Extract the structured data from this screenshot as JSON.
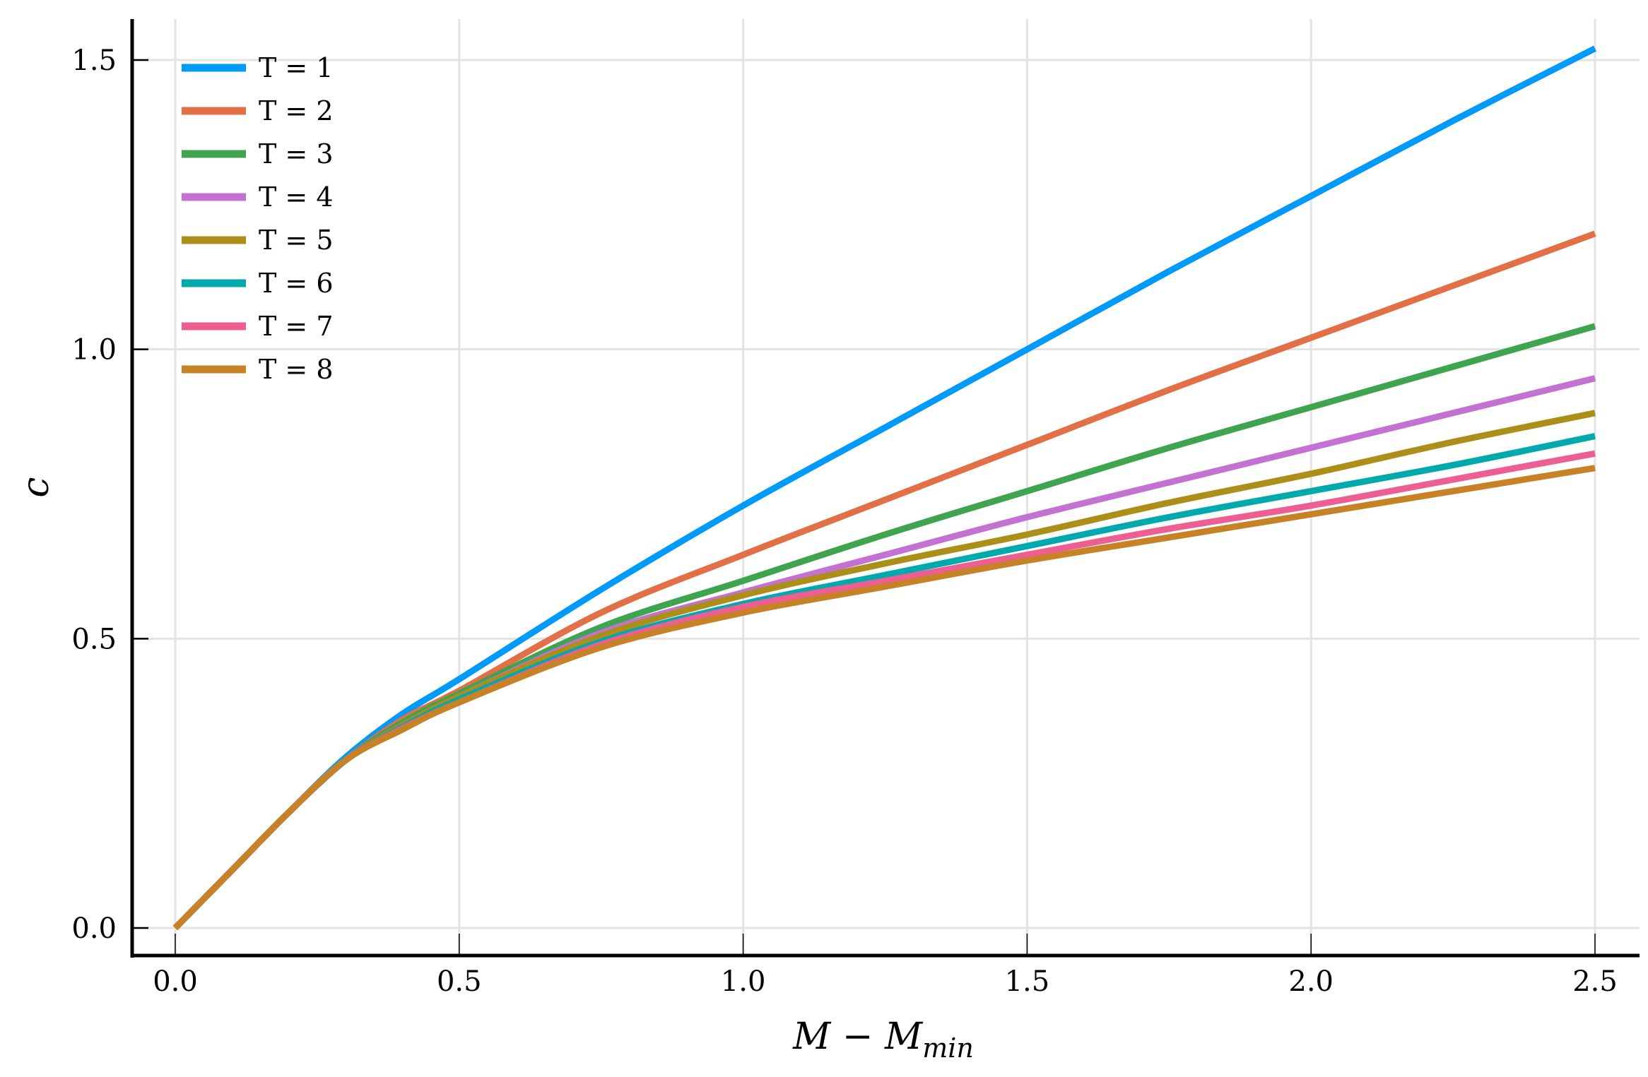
{
  "chart_data": {
    "type": "line",
    "title": "",
    "xlabel": "M − M_min",
    "xlabel_main": "M − M",
    "xlabel_sub": "min",
    "ylabel": "c",
    "xlim": [
      -0.07,
      2.57
    ],
    "ylim": [
      -0.045,
      1.58
    ],
    "xticks": [
      0.0,
      0.5,
      1.0,
      1.5,
      2.0,
      2.5
    ],
    "xtick_labels": [
      "0.0",
      "0.5",
      "1.0",
      "1.5",
      "2.0",
      "2.5"
    ],
    "yticks": [
      0.0,
      0.5,
      1.0,
      1.5
    ],
    "ytick_labels": [
      "0.0",
      "0.5",
      "1.0",
      "1.5"
    ],
    "grid": true,
    "legend_position": "top-left",
    "x": [
      0,
      0.1,
      0.2,
      0.3,
      0.4,
      0.5,
      0.75,
      1.0,
      1.25,
      1.5,
      1.75,
      2.0,
      2.25,
      2.5
    ],
    "series": [
      {
        "name": "T = 1",
        "color": "#009AFA",
        "values": [
          0,
          0.1,
          0.2,
          0.295,
          0.37,
          0.43,
          0.585,
          0.73,
          0.865,
          1.0,
          1.135,
          1.265,
          1.395,
          1.52
        ]
      },
      {
        "name": "T = 2",
        "color": "#E26F46",
        "values": [
          0,
          0.1,
          0.2,
          0.29,
          0.36,
          0.41,
          0.545,
          0.645,
          0.74,
          0.835,
          0.93,
          1.02,
          1.11,
          1.2
        ]
      },
      {
        "name": "T = 3",
        "color": "#3EA44E",
        "values": [
          0,
          0.1,
          0.2,
          0.29,
          0.355,
          0.405,
          0.52,
          0.6,
          0.68,
          0.755,
          0.83,
          0.9,
          0.97,
          1.04
        ]
      },
      {
        "name": "T = 4",
        "color": "#C371D2",
        "values": [
          0,
          0.1,
          0.2,
          0.29,
          0.35,
          0.4,
          0.51,
          0.58,
          0.645,
          0.71,
          0.77,
          0.83,
          0.89,
          0.95
        ]
      },
      {
        "name": "T = 5",
        "color": "#AC8E18",
        "values": [
          0,
          0.1,
          0.2,
          0.29,
          0.35,
          0.4,
          0.505,
          0.575,
          0.63,
          0.68,
          0.735,
          0.785,
          0.84,
          0.89
        ]
      },
      {
        "name": "T = 6",
        "color": "#00A9AD",
        "values": [
          0,
          0.1,
          0.2,
          0.29,
          0.347,
          0.395,
          0.495,
          0.56,
          0.61,
          0.66,
          0.71,
          0.755,
          0.8,
          0.85
        ]
      },
      {
        "name": "T = 7",
        "color": "#ED5E93",
        "values": [
          0,
          0.1,
          0.2,
          0.29,
          0.345,
          0.39,
          0.49,
          0.555,
          0.6,
          0.645,
          0.69,
          0.73,
          0.775,
          0.82
        ]
      },
      {
        "name": "T = 8",
        "color": "#C68225",
        "values": [
          0,
          0.1,
          0.2,
          0.29,
          0.343,
          0.39,
          0.485,
          0.545,
          0.59,
          0.635,
          0.675,
          0.715,
          0.755,
          0.795
        ]
      }
    ]
  }
}
